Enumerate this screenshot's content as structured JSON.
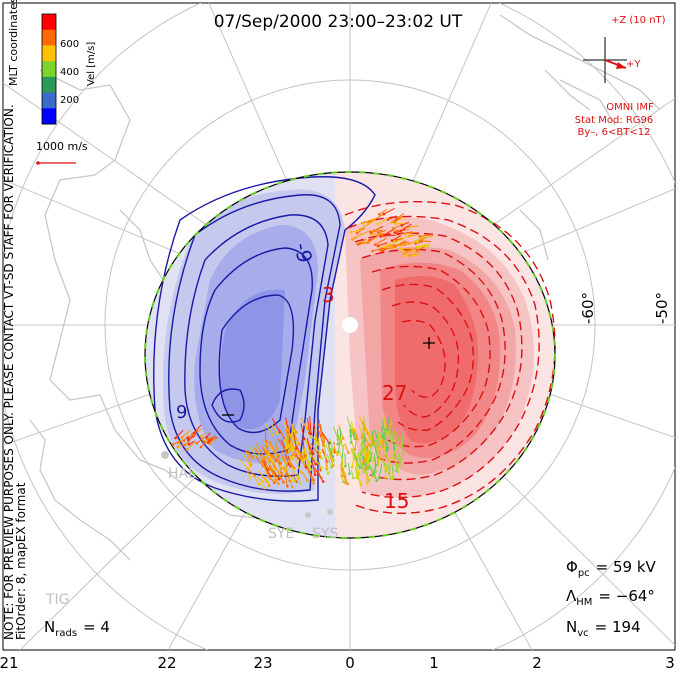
{
  "title": "07/Sep/2000 23:00–23:02 UT",
  "side_note": "NOTE: FOR PREVIEW PURPOSES ONLY. PLEASE CONTACT VT-SD STAFF FOR VERIFICATION.",
  "fitorder": "FitOrder: 8, mapEX format",
  "coord_label": "MLT coordinates",
  "colorbar": {
    "label": "Vel [m/s]",
    "ticks": [
      "600",
      "400",
      "200"
    ],
    "colors": [
      "#ff0000",
      "#ff6a00",
      "#ffc000",
      "#7fd42a",
      "#2a9a5a",
      "#3a6acc",
      "#0000ff"
    ]
  },
  "vector_scale": "1000 m/s",
  "imf": {
    "z_label": "+Z (10 nT)",
    "y_label": "+Y",
    "source": "OMNI IMF",
    "model_line1": "Stat Mod: RG96",
    "model_line2": "By–, 6<BT<12"
  },
  "lat_labels": [
    "-60°",
    "-50°"
  ],
  "mlt_labels": [
    "21",
    "22",
    "23",
    "0",
    "1",
    "2",
    "3"
  ],
  "contours": {
    "positive_labels": [
      "3",
      "27",
      "15"
    ],
    "negative_labels": [
      "-9",
      "9"
    ]
  },
  "stations": [
    "HAL",
    "SYE",
    "SYS",
    "TIG"
  ],
  "stats": {
    "phi_pc_label": "Φ",
    "phi_pc_sub": "pc",
    "phi_pc_value": "= 59 kV",
    "lambda_hm_label": "Λ",
    "lambda_hm_sub": "HM",
    "lambda_hm_value": "= −64°",
    "n_vc_label": "N",
    "n_vc_sub": "vc",
    "n_vc_value": "= 194",
    "n_rads_label": "N",
    "n_rads_sub": "rads",
    "n_rads_value": "= 4"
  },
  "colors": {
    "positive": "#dd1111",
    "negative": "#1a1aa8",
    "boundary_green": "#66cc22",
    "coast": "#c8c8c8"
  }
}
